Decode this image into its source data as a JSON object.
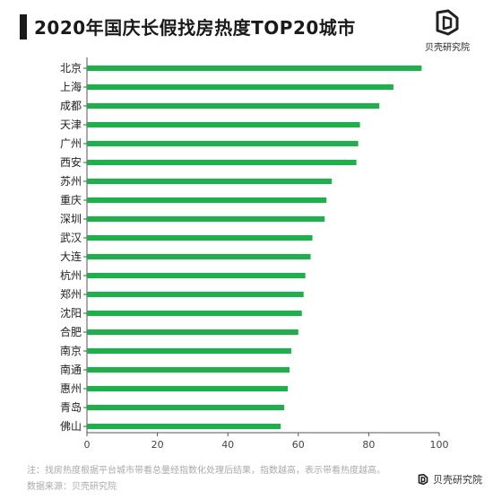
{
  "title": "2020年国庆长假找房热度TOP20城市",
  "brand": {
    "name": "贝壳研究院",
    "icon": "beike-logo-icon"
  },
  "footer": {
    "note": "注：找房热度根据平台城市带看总量经指数化处理后结果，指数越高，表示带看热度越高。",
    "source": "数据来源：贝壳研究院"
  },
  "colors": {
    "bar": "#1ab34a",
    "axis": "#555555",
    "title_bar": "#1a1a1a"
  },
  "chart_data": {
    "type": "bar",
    "orientation": "horizontal",
    "title": "2020年国庆长假找房热度TOP20城市",
    "xlabel": "",
    "ylabel": "",
    "xlim": [
      0,
      100
    ],
    "xticks": [
      0,
      20,
      40,
      60,
      80,
      100
    ],
    "grid": false,
    "categories": [
      "北京",
      "上海",
      "成都",
      "天津",
      "广州",
      "西安",
      "苏州",
      "重庆",
      "深圳",
      "武汉",
      "大连",
      "杭州",
      "郑州",
      "沈阳",
      "合肥",
      "南京",
      "南通",
      "惠州",
      "青岛",
      "佛山"
    ],
    "values": [
      95.0,
      87.0,
      83.0,
      77.5,
      77.0,
      76.5,
      69.5,
      68.0,
      67.5,
      64.0,
      63.5,
      62.0,
      61.5,
      61.0,
      60.0,
      58.0,
      57.5,
      57.0,
      56.0,
      55.0
    ]
  }
}
